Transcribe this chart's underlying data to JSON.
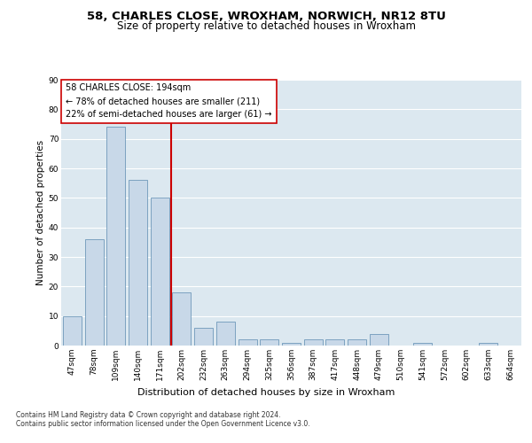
{
  "title1": "58, CHARLES CLOSE, WROXHAM, NORWICH, NR12 8TU",
  "title2": "Size of property relative to detached houses in Wroxham",
  "xlabel": "Distribution of detached houses by size in Wroxham",
  "ylabel": "Number of detached properties",
  "categories": [
    "47sqm",
    "78sqm",
    "109sqm",
    "140sqm",
    "171sqm",
    "202sqm",
    "232sqm",
    "263sqm",
    "294sqm",
    "325sqm",
    "356sqm",
    "387sqm",
    "417sqm",
    "448sqm",
    "479sqm",
    "510sqm",
    "541sqm",
    "572sqm",
    "602sqm",
    "633sqm",
    "664sqm"
  ],
  "values": [
    10,
    36,
    74,
    56,
    50,
    18,
    6,
    8,
    2,
    2,
    1,
    2,
    2,
    2,
    4,
    0,
    1,
    0,
    0,
    1,
    0
  ],
  "bar_color": "#c8d8e8",
  "bar_edge_color": "#5a8ab0",
  "vline_x": 4.5,
  "vline_color": "#cc0000",
  "annotation_text": "58 CHARLES CLOSE: 194sqm\n← 78% of detached houses are smaller (211)\n22% of semi-detached houses are larger (61) →",
  "annotation_box_color": "#ffffff",
  "annotation_box_edge": "#cc0000",
  "ylim": [
    0,
    90
  ],
  "yticks": [
    0,
    10,
    20,
    30,
    40,
    50,
    60,
    70,
    80,
    90
  ],
  "plot_bg_color": "#dce8f0",
  "grid_color": "#ffffff",
  "footer": "Contains HM Land Registry data © Crown copyright and database right 2024.\nContains public sector information licensed under the Open Government Licence v3.0.",
  "title1_fontsize": 9.5,
  "title2_fontsize": 8.5,
  "xlabel_fontsize": 8,
  "ylabel_fontsize": 7.5,
  "tick_fontsize": 6.5,
  "annotation_fontsize": 7,
  "footer_fontsize": 5.5
}
